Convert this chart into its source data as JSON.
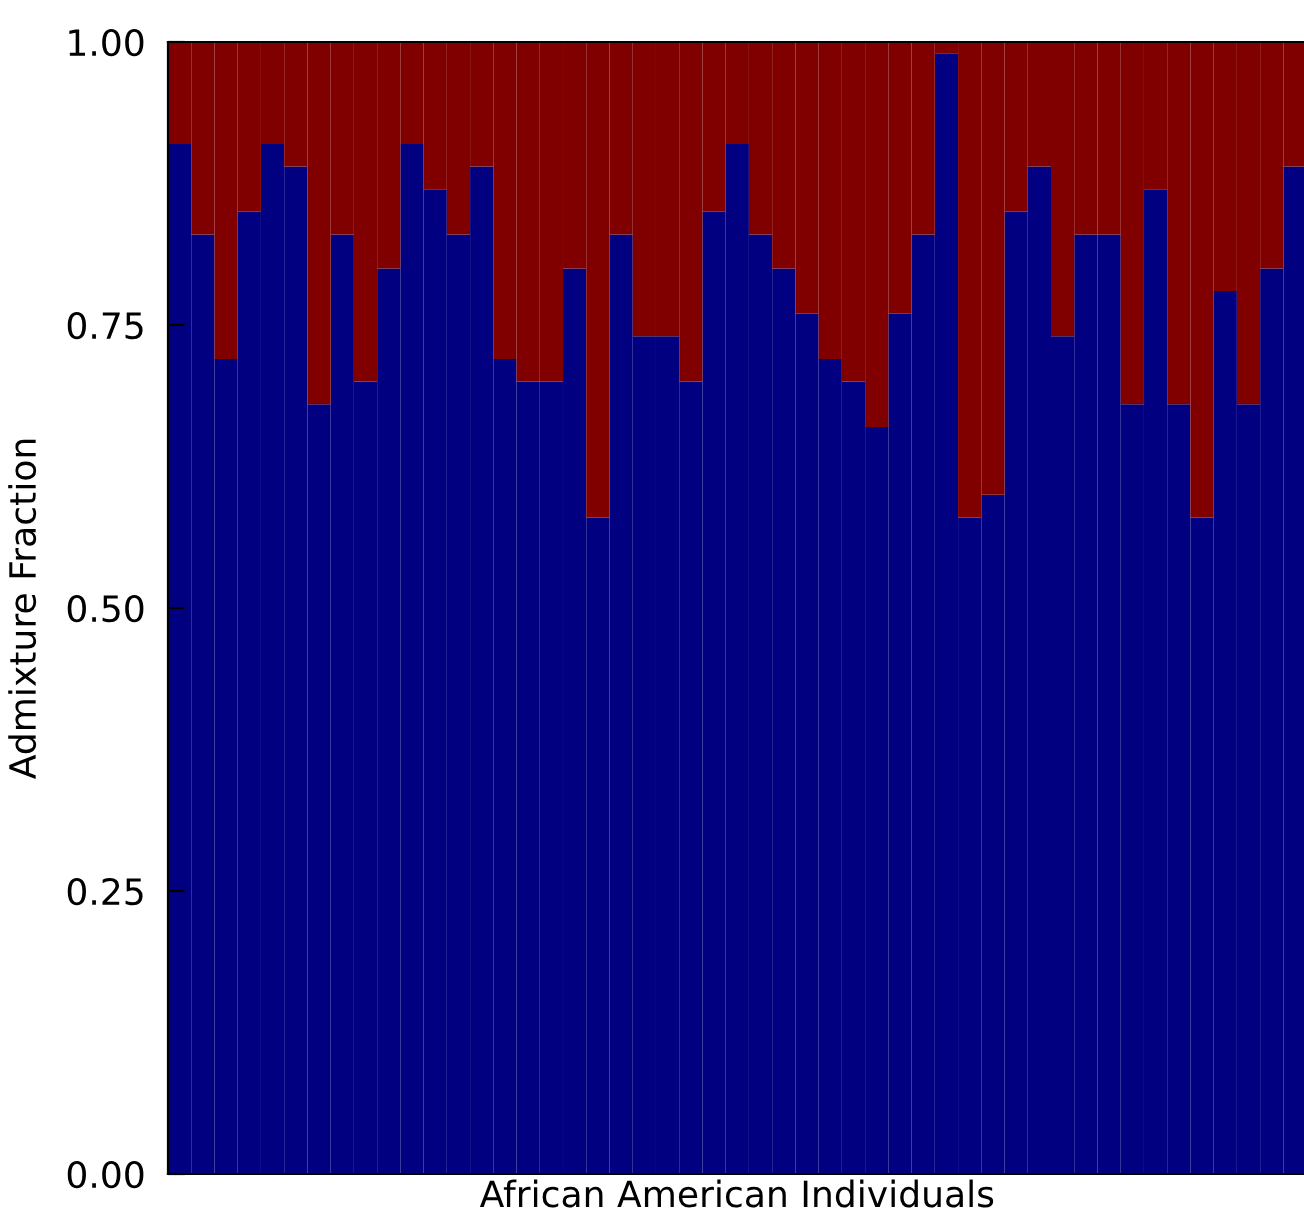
{
  "chart_data": {
    "type": "bar",
    "stacked": true,
    "xlabel": "African American Individuals",
    "ylabel": "Admixture Fraction",
    "categories": [
      null,
      null,
      null,
      null,
      null,
      null,
      null,
      null,
      null,
      null,
      null,
      null,
      null,
      null,
      null,
      null,
      null,
      null,
      null,
      null,
      null,
      null,
      null,
      null,
      null,
      null,
      null,
      null,
      null,
      null,
      null,
      null,
      null,
      null,
      null,
      null,
      null,
      null,
      null,
      null,
      null,
      null,
      null,
      null,
      null,
      null,
      null,
      null,
      null
    ],
    "series": [
      {
        "color": "#000080",
        "values": [
          0.91,
          0.83,
          0.72,
          0.85,
          0.91,
          0.89,
          0.68,
          0.83,
          0.7,
          0.8,
          0.91,
          0.87,
          0.83,
          0.89,
          0.72,
          0.7,
          0.7,
          0.8,
          0.58,
          0.83,
          0.74,
          0.74,
          0.7,
          0.85,
          0.91,
          0.83,
          0.8,
          0.76,
          0.72,
          0.7,
          0.66,
          0.76,
          0.83,
          0.99,
          0.58,
          0.6,
          0.85,
          0.89,
          0.74,
          0.83,
          0.83,
          0.68,
          0.87,
          0.68,
          0.58,
          0.78,
          0.68,
          0.8,
          0.89
        ]
      },
      {
        "color": "#800000",
        "values": [
          0.09,
          0.17,
          0.28,
          0.15,
          0.09,
          0.11,
          0.32,
          0.17,
          0.3,
          0.2,
          0.09,
          0.13,
          0.17,
          0.11,
          0.28,
          0.3,
          0.3,
          0.2,
          0.42,
          0.17,
          0.26,
          0.26,
          0.3,
          0.15,
          0.09,
          0.17,
          0.2,
          0.24,
          0.28,
          0.3,
          0.34,
          0.24,
          0.17,
          0.01,
          0.42,
          0.4,
          0.15,
          0.11,
          0.26,
          0.17,
          0.17,
          0.32,
          0.13,
          0.32,
          0.42,
          0.22,
          0.32,
          0.2,
          0.11
        ]
      }
    ],
    "ylim": [
      0,
      1
    ],
    "yticks": [
      {
        "value": 0,
        "label": "0.00"
      },
      {
        "value": 0.25,
        "label": "0.25"
      },
      {
        "value": 0.5,
        "label": "0.50"
      },
      {
        "value": 0.75,
        "label": "0.75"
      },
      {
        "value": 1,
        "label": "1.00"
      }
    ],
    "tick_labels": "y",
    "grid": false,
    "legend": false
  }
}
